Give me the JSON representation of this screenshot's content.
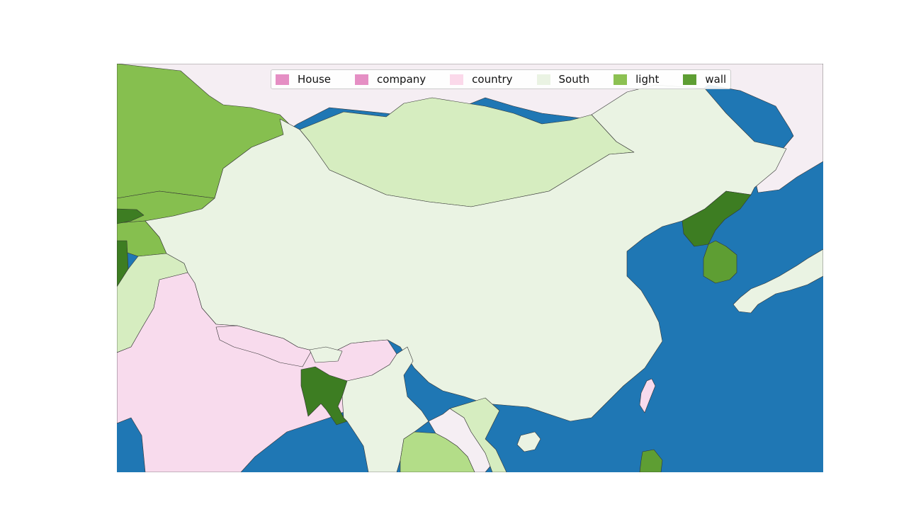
{
  "map": {
    "region": "East Asia",
    "ocean_color": "#1f77b4",
    "background_color": "#ffffff",
    "regions": [
      {
        "name": "outside-land",
        "category": "other",
        "color": "#f5eef3"
      },
      {
        "name": "china",
        "category": "South",
        "color": "#eaf3e3"
      },
      {
        "name": "mongolia",
        "category": "pale-green",
        "color": "#d6edc0"
      },
      {
        "name": "kazakhstan",
        "category": "light",
        "color": "#86bf4f"
      },
      {
        "name": "kyrgyzstan",
        "category": "light",
        "color": "#86bf4f"
      },
      {
        "name": "tajikistan",
        "category": "light",
        "color": "#86bf4f"
      },
      {
        "name": "afghanistan",
        "category": "wall",
        "color": "#3d7d22"
      },
      {
        "name": "pakistan",
        "category": "pale-green",
        "color": "#d6edc0"
      },
      {
        "name": "india",
        "category": "country",
        "color": "#f8dbed"
      },
      {
        "name": "nepal",
        "category": "country",
        "color": "#f8dbed"
      },
      {
        "name": "bhutan",
        "category": "South",
        "color": "#eaf3e3"
      },
      {
        "name": "bangladesh",
        "category": "wall",
        "color": "#3d7d22"
      },
      {
        "name": "myanmar",
        "category": "South",
        "color": "#eaf3e3"
      },
      {
        "name": "laos",
        "category": "other",
        "color": "#f5eef3"
      },
      {
        "name": "vietnam",
        "category": "pale-green",
        "color": "#d6edc0"
      },
      {
        "name": "thailand",
        "category": "mid-green",
        "color": "#b3dd88"
      },
      {
        "name": "north-korea",
        "category": "wall",
        "color": "#3d7d22"
      },
      {
        "name": "south-korea",
        "category": "wall",
        "color": "#5e9e33"
      },
      {
        "name": "japan",
        "category": "South",
        "color": "#eaf3e3"
      },
      {
        "name": "taiwan",
        "category": "country",
        "color": "#f8dbed"
      },
      {
        "name": "philippines",
        "category": "wall",
        "color": "#5e9e33"
      },
      {
        "name": "hainan",
        "category": "South",
        "color": "#eaf3e3"
      }
    ]
  },
  "legend": {
    "items": [
      {
        "label": "House",
        "color": "#e58fc4"
      },
      {
        "label": "company",
        "color": "#e58fc4"
      },
      {
        "label": "country",
        "color": "#fbd9ea"
      },
      {
        "label": "South",
        "color": "#eaf3e3"
      },
      {
        "label": "light",
        "color": "#8cc152"
      },
      {
        "label": "wall",
        "color": "#5e9e33"
      }
    ]
  }
}
